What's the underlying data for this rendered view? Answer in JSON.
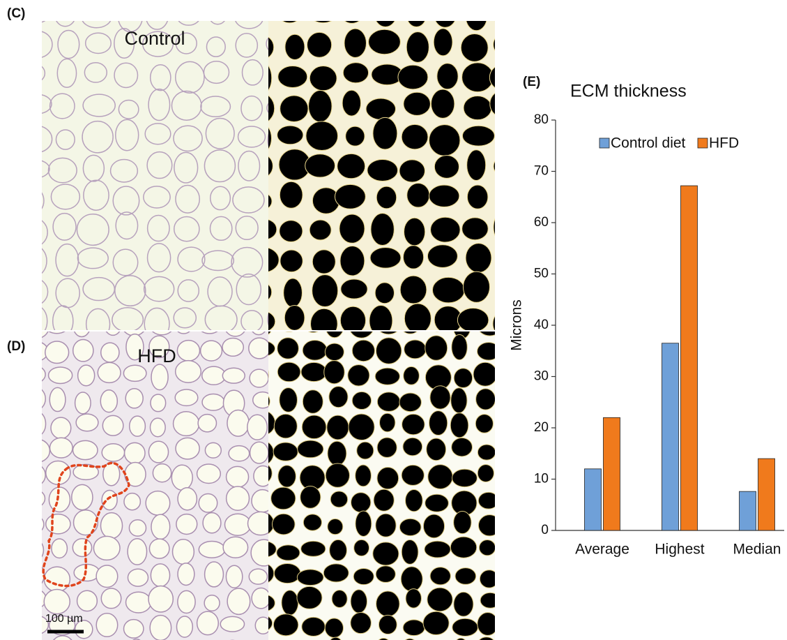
{
  "panels": {
    "c_label": "(C)",
    "d_label": "(D)",
    "e_label": "(E)",
    "control_title": "Control",
    "hfd_title": "HFD",
    "scale_bar": "100 µm"
  },
  "chart_data": {
    "type": "bar",
    "title": "ECM thickness",
    "y_label": "Microns",
    "categories": [
      "Average",
      "Highest",
      "Median"
    ],
    "series": [
      {
        "name": "Control diet",
        "color": "#6fa0d8",
        "values": [
          12,
          36.5,
          7.6
        ]
      },
      {
        "name": "HFD",
        "color": "#f07a1c",
        "values": [
          22,
          67.2,
          14
        ]
      }
    ],
    "ylim": [
      0,
      80
    ],
    "yticks": [
      0,
      10,
      20,
      30,
      40,
      50,
      60,
      70,
      80
    ],
    "grid": false,
    "legend": "top"
  }
}
